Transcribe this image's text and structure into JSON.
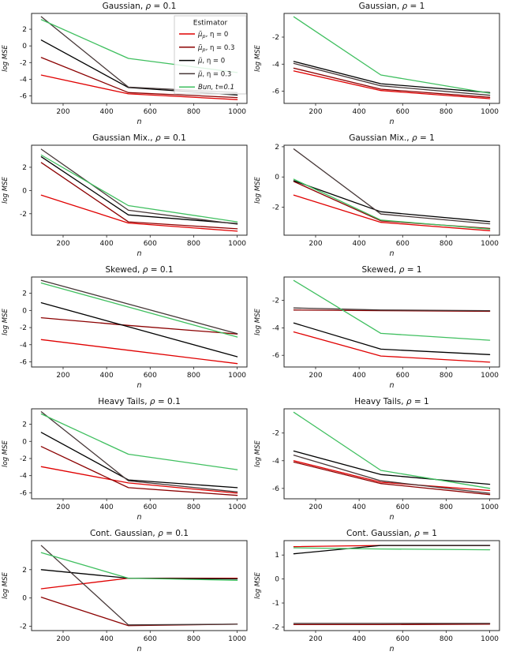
{
  "figure": {
    "background": "#ffffff",
    "columns": 2,
    "rows": 5
  },
  "colors": {
    "mu_p_eta0": "#e00000",
    "mu_p_eta03": "#8b0000",
    "mu_eta0": "#000000",
    "mu_eta03": "#463737",
    "bun": "#3fbf5f",
    "axis": "#262626",
    "text": "#111111"
  },
  "legend": {
    "title": "Estimator",
    "position": "top-right-of-first-chart",
    "items": [
      {
        "base": "μ̃",
        "sub": "p",
        "rest": ",  η = 0",
        "color_key": "mu_p_eta0"
      },
      {
        "base": "μ̃",
        "sub": "p",
        "rest": ",  η = 0.3",
        "color_key": "mu_p_eta03"
      },
      {
        "base": "μ̃",
        "sub": "",
        "rest": ",  η = 0",
        "color_key": "mu_eta0"
      },
      {
        "base": "μ̃",
        "sub": "",
        "rest": ",  η = 0.3",
        "color_key": "mu_eta03"
      },
      {
        "base": "Bun, t=0.1",
        "sub": "",
        "rest": "",
        "color_key": "bun"
      }
    ]
  },
  "chart_data": [
    {
      "type": "line",
      "title": "Gaussian, ρ = 0.1",
      "title_prefix": "Gaussian",
      "rho": "0.1",
      "xlabel": "n",
      "ylabel": "log MSE",
      "x": [
        100,
        500,
        1000
      ],
      "xticks": [
        200,
        400,
        600,
        800,
        1000
      ],
      "yticks": [
        2,
        0,
        -2,
        -4,
        -6
      ],
      "ylim": [
        -6.9,
        3.9
      ],
      "xlim": [
        55,
        1045
      ],
      "has_legend": true,
      "series": [
        {
          "name": "μ̃p, η = 0",
          "color_key": "mu_p_eta0",
          "values": [
            -3.5,
            -5.75,
            -6.45
          ]
        },
        {
          "name": "μ̃p, η = 0.3",
          "color_key": "mu_p_eta03",
          "values": [
            -1.4,
            -5.6,
            -6.2
          ]
        },
        {
          "name": "μ̃, η = 0",
          "color_key": "mu_eta0",
          "values": [
            0.7,
            -5.0,
            -5.9
          ]
        },
        {
          "name": "μ̃, η = 0.3",
          "color_key": "mu_eta03",
          "values": [
            3.5,
            -4.95,
            -5.6
          ]
        },
        {
          "name": "Bun, t=0.1",
          "color_key": "bun",
          "values": [
            3.15,
            -1.5,
            -3.2
          ]
        }
      ]
    },
    {
      "type": "line",
      "title": "Gaussian, ρ = 1",
      "title_prefix": "Gaussian",
      "rho": "1",
      "xlabel": "n",
      "ylabel": "log MSE",
      "x": [
        100,
        500,
        1000
      ],
      "xticks": [
        200,
        400,
        600,
        800,
        1000
      ],
      "yticks": [
        -2,
        -4,
        -6
      ],
      "ylim": [
        -6.9,
        -0.25
      ],
      "xlim": [
        55,
        1045
      ],
      "has_legend": false,
      "series": [
        {
          "name": "μ̃p, η = 0",
          "color_key": "mu_p_eta0",
          "values": [
            -4.5,
            -5.95,
            -6.55
          ]
        },
        {
          "name": "μ̃p, η = 0.3",
          "color_key": "mu_p_eta03",
          "values": [
            -4.3,
            -5.85,
            -6.45
          ]
        },
        {
          "name": "μ̃, η = 0",
          "color_key": "mu_eta0",
          "values": [
            -3.8,
            -5.45,
            -6.1
          ]
        },
        {
          "name": "μ̃, η = 0.3",
          "color_key": "mu_eta03",
          "values": [
            -3.95,
            -5.6,
            -6.3
          ]
        },
        {
          "name": "Bun, t=0.1",
          "color_key": "bun",
          "values": [
            -0.5,
            -4.8,
            -6.15
          ]
        }
      ]
    },
    {
      "type": "line",
      "title": "Gaussian Mix., ρ = 0.1",
      "title_prefix": "Gaussian Mix.",
      "rho": "0.1",
      "xlabel": "n",
      "ylabel": "log MSE",
      "x": [
        100,
        500,
        1000
      ],
      "xticks": [
        200,
        400,
        600,
        800,
        1000
      ],
      "yticks": [
        2,
        0,
        -2
      ],
      "ylim": [
        -3.85,
        3.9
      ],
      "xlim": [
        55,
        1045
      ],
      "has_legend": false,
      "series": [
        {
          "name": "μ̃p, η = 0",
          "color_key": "mu_p_eta0",
          "values": [
            -0.4,
            -2.8,
            -3.5
          ]
        },
        {
          "name": "μ̃p, η = 0.3",
          "color_key": "mu_p_eta03",
          "values": [
            2.4,
            -2.7,
            -3.3
          ]
        },
        {
          "name": "μ̃, η = 0",
          "color_key": "mu_eta0",
          "values": [
            2.9,
            -2.1,
            -2.85
          ]
        },
        {
          "name": "μ̃, η = 0.3",
          "color_key": "mu_eta03",
          "values": [
            3.55,
            -1.7,
            -2.9
          ]
        },
        {
          "name": "Bun, t=0.1",
          "color_key": "bun",
          "values": [
            3.05,
            -1.3,
            -2.7
          ]
        }
      ]
    },
    {
      "type": "line",
      "title": "Gaussian Mix., ρ = 1",
      "title_prefix": "Gaussian Mix.",
      "rho": "1",
      "xlabel": "n",
      "ylabel": "log MSE",
      "x": [
        100,
        500,
        1000
      ],
      "xticks": [
        200,
        400,
        600,
        800,
        1000
      ],
      "yticks": [
        2,
        0,
        -2
      ],
      "ylim": [
        -3.85,
        2.1
      ],
      "xlim": [
        55,
        1045
      ],
      "has_legend": false,
      "series": [
        {
          "name": "μ̃p, η = 0",
          "color_key": "mu_p_eta0",
          "values": [
            -1.2,
            -3.0,
            -3.55
          ]
        },
        {
          "name": "μ̃p, η = 0.3",
          "color_key": "mu_p_eta03",
          "values": [
            -0.3,
            -2.9,
            -3.4
          ]
        },
        {
          "name": "μ̃, η = 0",
          "color_key": "mu_eta0",
          "values": [
            -0.25,
            -2.3,
            -2.95
          ]
        },
        {
          "name": "μ̃, η = 0.3",
          "color_key": "mu_eta03",
          "values": [
            1.85,
            -2.45,
            -3.1
          ]
        },
        {
          "name": "Bun, t=0.1",
          "color_key": "bun",
          "values": [
            -0.15,
            -2.85,
            -3.45
          ]
        }
      ]
    },
    {
      "type": "line",
      "title": "Skewed, ρ = 0.1",
      "title_prefix": "Skewed",
      "rho": "0.1",
      "xlabel": "n",
      "ylabel": "log MSE",
      "x": [
        100,
        500,
        1000
      ],
      "xticks": [
        200,
        400,
        600,
        800,
        1000
      ],
      "yticks": [
        2,
        0,
        -2,
        -4,
        -6
      ],
      "ylim": [
        -6.6,
        3.9
      ],
      "xlim": [
        55,
        1045
      ],
      "has_legend": false,
      "series": [
        {
          "name": "μ̃p, η = 0",
          "color_key": "mu_p_eta0",
          "values": [
            -3.4,
            -4.65,
            -6.2
          ]
        },
        {
          "name": "μ̃p, η = 0.3",
          "color_key": "mu_p_eta03",
          "values": [
            -0.85,
            -1.75,
            -2.75
          ]
        },
        {
          "name": "μ̃, η = 0",
          "color_key": "mu_eta0",
          "values": [
            0.9,
            -1.9,
            -5.4
          ]
        },
        {
          "name": "μ̃, η = 0.3",
          "color_key": "mu_eta03",
          "values": [
            3.5,
            0.75,
            -2.7
          ]
        },
        {
          "name": "Bun, t=0.1",
          "color_key": "bun",
          "values": [
            3.2,
            0.4,
            -3.1
          ]
        }
      ]
    },
    {
      "type": "line",
      "title": "Skewed, ρ = 1",
      "title_prefix": "Skewed",
      "rho": "1",
      "xlabel": "n",
      "ylabel": "log MSE",
      "x": [
        100,
        500,
        1000
      ],
      "xticks": [
        200,
        400,
        600,
        800,
        1000
      ],
      "yticks": [
        -2,
        -4,
        -6
      ],
      "ylim": [
        -6.85,
        -0.3
      ],
      "xlim": [
        55,
        1045
      ],
      "has_legend": false,
      "series": [
        {
          "name": "μ̃p, η = 0",
          "color_key": "mu_p_eta0",
          "values": [
            -4.3,
            -6.05,
            -6.5
          ]
        },
        {
          "name": "μ̃p, η = 0.3",
          "color_key": "mu_p_eta03",
          "values": [
            -2.7,
            -2.75,
            -2.8
          ]
        },
        {
          "name": "μ̃, η = 0",
          "color_key": "mu_eta0",
          "values": [
            -3.65,
            -5.55,
            -5.95
          ]
        },
        {
          "name": "μ̃, η = 0.3",
          "color_key": "mu_eta03",
          "values": [
            -2.55,
            -2.7,
            -2.75
          ]
        },
        {
          "name": "Bun, t=0.1",
          "color_key": "bun",
          "values": [
            -0.55,
            -4.4,
            -4.9
          ]
        }
      ]
    },
    {
      "type": "line",
      "title": "Heavy Tails, ρ = 0.1",
      "title_prefix": "Heavy Tails",
      "rho": "0.1",
      "xlabel": "n",
      "ylabel": "log MSE",
      "x": [
        100,
        500,
        1000
      ],
      "xticks": [
        200,
        400,
        600,
        800,
        1000
      ],
      "yticks": [
        2,
        0,
        -2,
        -4,
        -6
      ],
      "ylim": [
        -6.7,
        3.8
      ],
      "xlim": [
        55,
        1045
      ],
      "has_legend": false,
      "series": [
        {
          "name": "μ̃p, η = 0",
          "color_key": "mu_p_eta0",
          "values": [
            -2.95,
            -4.85,
            -6.05
          ]
        },
        {
          "name": "μ̃p, η = 0.3",
          "color_key": "mu_p_eta03",
          "values": [
            -0.6,
            -5.4,
            -6.3
          ]
        },
        {
          "name": "μ̃, η = 0",
          "color_key": "mu_eta0",
          "values": [
            1.05,
            -4.5,
            -5.4
          ]
        },
        {
          "name": "μ̃, η = 0.3",
          "color_key": "mu_eta03",
          "values": [
            3.45,
            -4.6,
            -5.9
          ]
        },
        {
          "name": "Bun, t=0.1",
          "color_key": "bun",
          "values": [
            3.2,
            -1.5,
            -3.3
          ]
        }
      ]
    },
    {
      "type": "line",
      "title": "Heavy Tails, ρ = 1",
      "title_prefix": "Heavy Tails",
      "rho": "1",
      "xlabel": "n",
      "ylabel": "log MSE",
      "x": [
        100,
        500,
        1000
      ],
      "xticks": [
        200,
        400,
        600,
        800,
        1000
      ],
      "yticks": [
        -2,
        -4,
        -6
      ],
      "ylim": [
        -6.75,
        -0.25
      ],
      "xlim": [
        55,
        1045
      ],
      "has_legend": false,
      "series": [
        {
          "name": "μ̃p, η = 0",
          "color_key": "mu_p_eta0",
          "values": [
            -4.0,
            -5.55,
            -6.15
          ]
        },
        {
          "name": "μ̃p, η = 0.3",
          "color_key": "mu_p_eta03",
          "values": [
            -4.1,
            -5.65,
            -6.45
          ]
        },
        {
          "name": "μ̃, η = 0",
          "color_key": "mu_eta0",
          "values": [
            -3.3,
            -5.0,
            -5.7
          ]
        },
        {
          "name": "μ̃, η = 0.3",
          "color_key": "mu_eta03",
          "values": [
            -3.6,
            -5.45,
            -6.35
          ]
        },
        {
          "name": "Bun, t=0.1",
          "color_key": "bun",
          "values": [
            -0.5,
            -4.7,
            -6.0
          ]
        }
      ]
    },
    {
      "type": "line",
      "title": "Cont. Gaussian, ρ = 0.1",
      "title_prefix": "Cont. Gaussian",
      "rho": "0.1",
      "xlabel": "n",
      "ylabel": "log MSE",
      "x": [
        100,
        500,
        1000
      ],
      "xticks": [
        200,
        400,
        600,
        800,
        1000
      ],
      "yticks": [
        2,
        0,
        -2
      ],
      "ylim": [
        -2.3,
        4.05
      ],
      "xlim": [
        55,
        1045
      ],
      "has_legend": false,
      "series": [
        {
          "name": "μ̃p, η = 0",
          "color_key": "mu_p_eta0",
          "values": [
            0.65,
            1.4,
            1.4
          ]
        },
        {
          "name": "μ̃p, η = 0.3",
          "color_key": "mu_p_eta03",
          "values": [
            0.05,
            -1.95,
            -1.85
          ]
        },
        {
          "name": "μ̃, η = 0",
          "color_key": "mu_eta0",
          "values": [
            2.0,
            1.4,
            1.35
          ]
        },
        {
          "name": "μ̃, η = 0.3",
          "color_key": "mu_eta03",
          "values": [
            3.7,
            -1.9,
            -1.85
          ]
        },
        {
          "name": "Bun, t=0.1",
          "color_key": "bun",
          "values": [
            3.2,
            1.4,
            1.25
          ]
        }
      ]
    },
    {
      "type": "line",
      "title": "Cont. Gaussian, ρ = 1",
      "title_prefix": "Cont. Gaussian",
      "rho": "1",
      "xlabel": "n",
      "ylabel": "log MSE",
      "x": [
        100,
        500,
        1000
      ],
      "xticks": [
        200,
        400,
        600,
        800,
        1000
      ],
      "yticks": [
        1,
        0,
        -1,
        -2
      ],
      "ylim": [
        -2.15,
        1.6
      ],
      "xlim": [
        55,
        1045
      ],
      "has_legend": false,
      "series": [
        {
          "name": "μ̃p, η = 0",
          "color_key": "mu_p_eta0",
          "values": [
            1.35,
            1.4,
            1.4
          ]
        },
        {
          "name": "μ̃p, η = 0.3",
          "color_key": "mu_p_eta03",
          "values": [
            -1.9,
            -1.9,
            -1.88
          ]
        },
        {
          "name": "μ̃, η = 0",
          "color_key": "mu_eta0",
          "values": [
            1.05,
            1.4,
            1.4
          ]
        },
        {
          "name": "μ̃, η = 0.3",
          "color_key": "mu_eta03",
          "values": [
            -1.85,
            -1.85,
            -1.85
          ]
        },
        {
          "name": "Bun, t=0.1",
          "color_key": "bun",
          "values": [
            1.3,
            1.25,
            1.22
          ]
        }
      ]
    }
  ]
}
